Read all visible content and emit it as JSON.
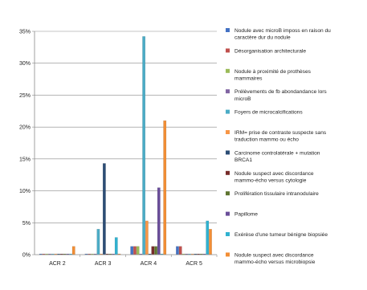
{
  "chart_data": {
    "type": "bar",
    "categories": [
      "ACR 2",
      "ACR 3",
      "ACR 4",
      "ACR 5"
    ],
    "ylim": [
      0,
      35
    ],
    "yticks": [
      0,
      5,
      10,
      15,
      20,
      25,
      30,
      35
    ],
    "ytick_labels": [
      "0%",
      "5%",
      "10%",
      "15%",
      "20%",
      "25%",
      "30%",
      "35%"
    ],
    "grid": true,
    "legend_position": "right",
    "series": [
      {
        "name": "Nodule avec microB imposs en raison du caractère dur du nodule",
        "color": "#4472C4",
        "values": [
          0,
          0,
          1.3,
          1.3
        ]
      },
      {
        "name": "Désorganisation architecturale",
        "color": "#C0504D",
        "values": [
          0,
          0,
          1.3,
          1.3
        ]
      },
      {
        "name": "Nodule à proximité de prothèses mammaires",
        "color": "#9BBB59",
        "values": [
          0,
          0,
          1.3,
          0
        ]
      },
      {
        "name": "Prélèvements de fb abondandance lors microB",
        "color": "#8064A2",
        "values": [
          0,
          0,
          0,
          0
        ]
      },
      {
        "name": "Foyers de microcalcifications",
        "color": "#4BACC6",
        "values": [
          0,
          4,
          34.2,
          0
        ]
      },
      {
        "name": "IRM= prise de contraste suspecte sans traduction mammo ou écho",
        "color": "#F79646",
        "values": [
          0,
          0,
          5.3,
          0
        ]
      },
      {
        "name": "Carcinome controlatérale + mutation BRCA1",
        "color": "#2C4D75",
        "values": [
          0,
          14.3,
          0,
          0
        ]
      },
      {
        "name": "Nodule suspect avec discordance mammo-écho versus cytologie",
        "color": "#772C2A",
        "values": [
          0,
          0,
          1.3,
          0
        ]
      },
      {
        "name": "Prolifération tissulaire intranodulaire",
        "color": "#5F7530",
        "values": [
          0,
          0,
          1.3,
          0
        ]
      },
      {
        "name": "Papillome",
        "color": "#6A4E9A",
        "values": [
          0,
          0,
          10.5,
          0
        ]
      },
      {
        "name": "Exérèse d'une tumeur bénigne biopsiée",
        "color": "#31B2D0",
        "values": [
          0,
          2.7,
          0,
          5.3
        ]
      },
      {
        "name": "Nodule suspect avec discordance mammo-écho versus microbiopsie",
        "color": "#F28E35",
        "values": [
          1.3,
          0,
          21,
          4
        ]
      }
    ]
  }
}
